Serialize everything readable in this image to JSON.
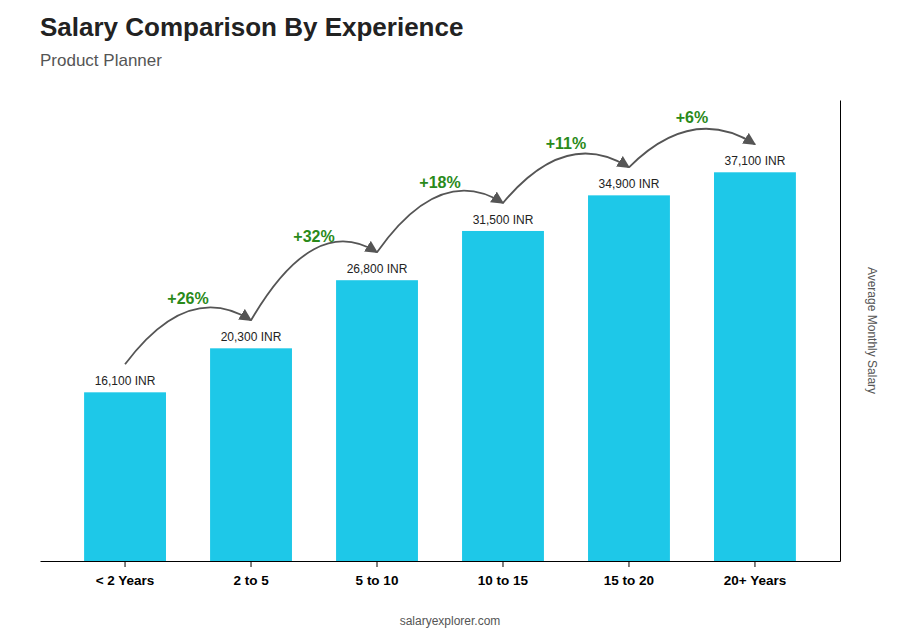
{
  "chart_data": {
    "type": "bar",
    "title": "Salary Comparison By Experience",
    "subtitle": "Product Planner",
    "y_label": "Average Monthly Salary",
    "categories": [
      "< 2 Years",
      "2 to 5",
      "5 to 10",
      "10 to 15",
      "15 to 20",
      "20+ Years"
    ],
    "values": [
      16100,
      20300,
      26800,
      31500,
      34900,
      37100
    ],
    "value_labels": [
      "16,100 INR",
      "20,300 INR",
      "26,800 INR",
      "31,500 INR",
      "34,900 INR",
      "37,100 INR"
    ],
    "data_labels": true,
    "annotations": [
      "+26%",
      "+32%",
      "+18%",
      "+11%",
      "+6%"
    ],
    "source": "salaryexplorer.com",
    "color": "#1ec8e8",
    "ylim": [
      0,
      44000
    ],
    "tick_labels": "x",
    "grid": false
  }
}
